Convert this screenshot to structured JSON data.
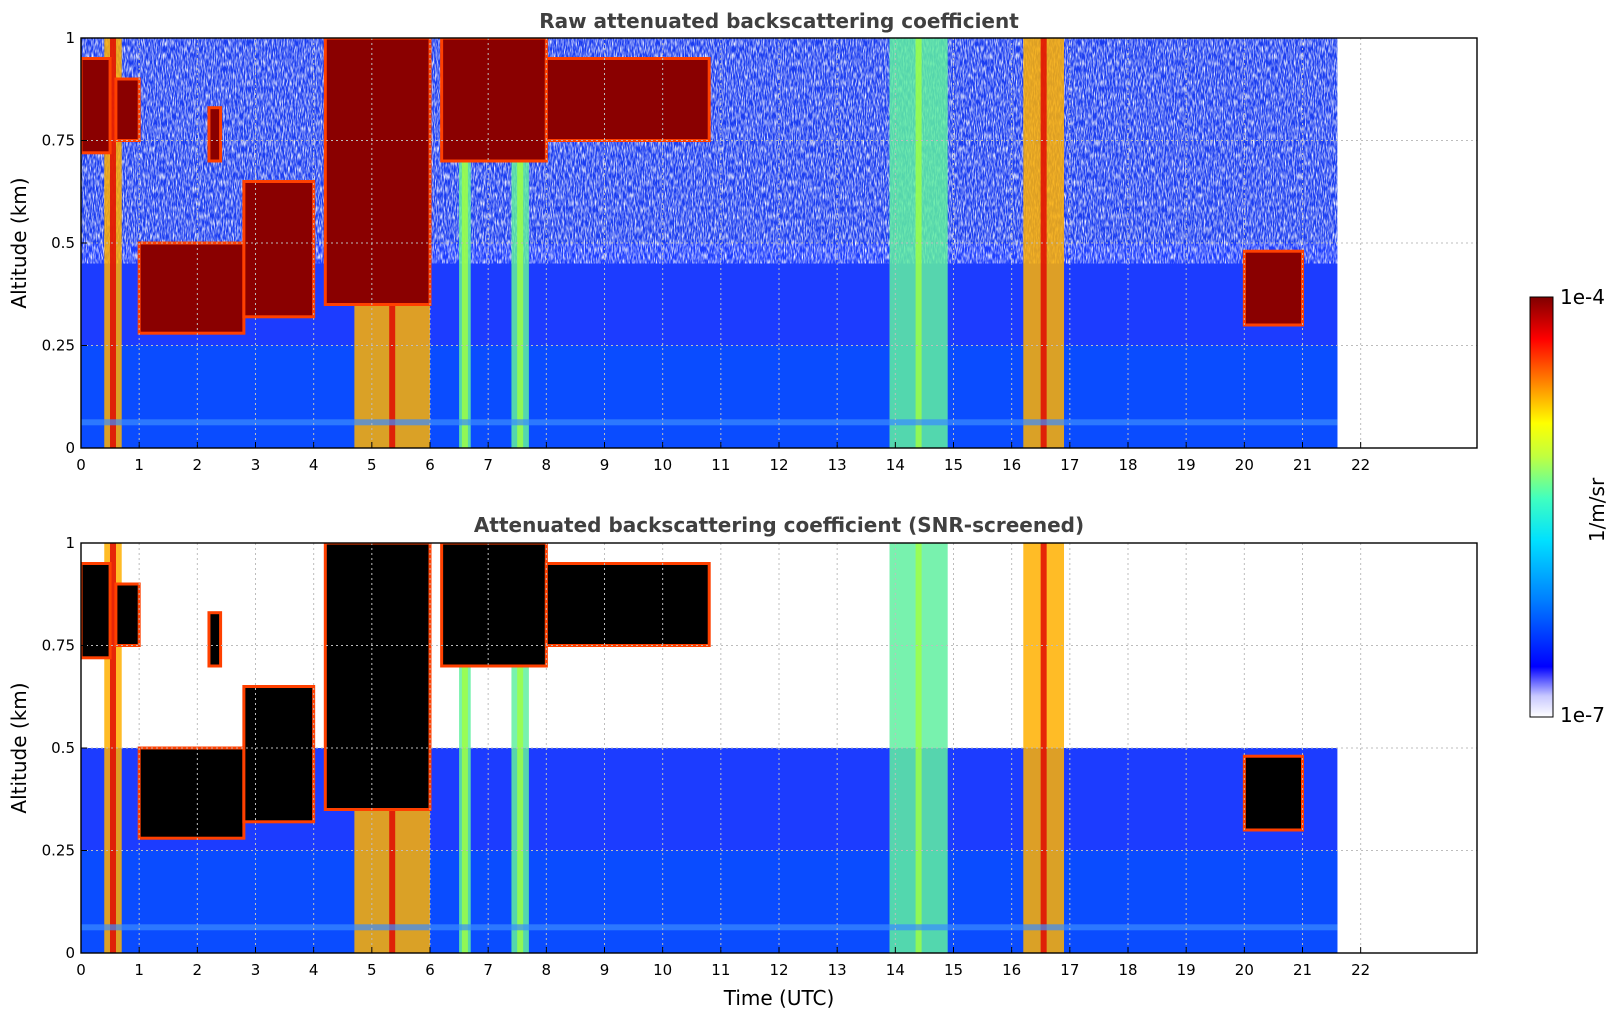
{
  "chart_data": [
    {
      "type": "heatmap",
      "title": "Raw attenuated backscattering coefficient",
      "xlabel": "",
      "ylabel": "Altitude (km)",
      "xlim": [
        0,
        24
      ],
      "ylim": [
        0,
        1
      ],
      "xticks": [
        "0",
        "1",
        "2",
        "3",
        "4",
        "5",
        "6",
        "7",
        "8",
        "9",
        "10",
        "11",
        "12",
        "13",
        "14",
        "15",
        "16",
        "17",
        "18",
        "19",
        "20",
        "21",
        "22"
      ],
      "yticks": [
        "0",
        "0.25",
        "0.5",
        "0.75",
        "1"
      ],
      "grid": true,
      "data_end_time": 21.6,
      "clouds": [
        {
          "t_start": 0.0,
          "t_end": 0.5,
          "base_km": 0.72,
          "top_km": 0.95
        },
        {
          "t_start": 0.6,
          "t_end": 1.0,
          "base_km": 0.75,
          "top_km": 0.9
        },
        {
          "t_start": 1.0,
          "t_end": 2.8,
          "base_km": 0.28,
          "top_km": 0.5
        },
        {
          "t_start": 2.2,
          "t_end": 2.4,
          "base_km": 0.7,
          "top_km": 0.83
        },
        {
          "t_start": 2.8,
          "t_end": 4.0,
          "base_km": 0.32,
          "top_km": 0.65
        },
        {
          "t_start": 4.2,
          "t_end": 6.0,
          "base_km": 0.35,
          "top_km": 1.0
        },
        {
          "t_start": 6.2,
          "t_end": 8.0,
          "base_km": 0.7,
          "top_km": 1.0
        },
        {
          "t_start": 8.0,
          "t_end": 10.8,
          "base_km": 0.75,
          "top_km": 0.95
        },
        {
          "t_start": 20.0,
          "t_end": 21.0,
          "base_km": 0.3,
          "top_km": 0.48
        }
      ],
      "precip_columns": [
        {
          "t_start": 0.4,
          "t_end": 0.7,
          "intensity": "high"
        },
        {
          "t_start": 4.7,
          "t_end": 6.0,
          "intensity": "high"
        },
        {
          "t_start": 6.5,
          "t_end": 6.7,
          "intensity": "medium"
        },
        {
          "t_start": 7.4,
          "t_end": 7.7,
          "intensity": "medium"
        },
        {
          "t_start": 13.9,
          "t_end": 14.9,
          "intensity": "medium"
        },
        {
          "t_start": 16.2,
          "t_end": 16.9,
          "intensity": "high"
        }
      ]
    },
    {
      "type": "heatmap",
      "title": "Attenuated backscattering coefficient (SNR-screened)",
      "xlabel": "Time (UTC)",
      "ylabel": "Altitude (km)",
      "xlim": [
        0,
        24
      ],
      "ylim": [
        0,
        1
      ],
      "xticks": [
        "0",
        "1",
        "2",
        "3",
        "4",
        "5",
        "6",
        "7",
        "8",
        "9",
        "10",
        "11",
        "12",
        "13",
        "14",
        "15",
        "16",
        "17",
        "18",
        "19",
        "20",
        "21",
        "22"
      ],
      "yticks": [
        "0",
        "0.25",
        "0.5",
        "0.75",
        "1"
      ],
      "grid": true,
      "data_end_time": 21.6,
      "screened": true
    }
  ],
  "colorbar": {
    "label": "1/m/sr",
    "max_label": "1e-4",
    "min_label": "1e-7",
    "scale": "log",
    "range": [
      1e-07,
      0.0001
    ],
    "colormap": [
      "#ffffff",
      "#c8c8ff",
      "#0000ff",
      "#0080ff",
      "#00e0ff",
      "#40ffc0",
      "#c0ff40",
      "#ffff00",
      "#ff8000",
      "#ff0000",
      "#800000"
    ]
  }
}
